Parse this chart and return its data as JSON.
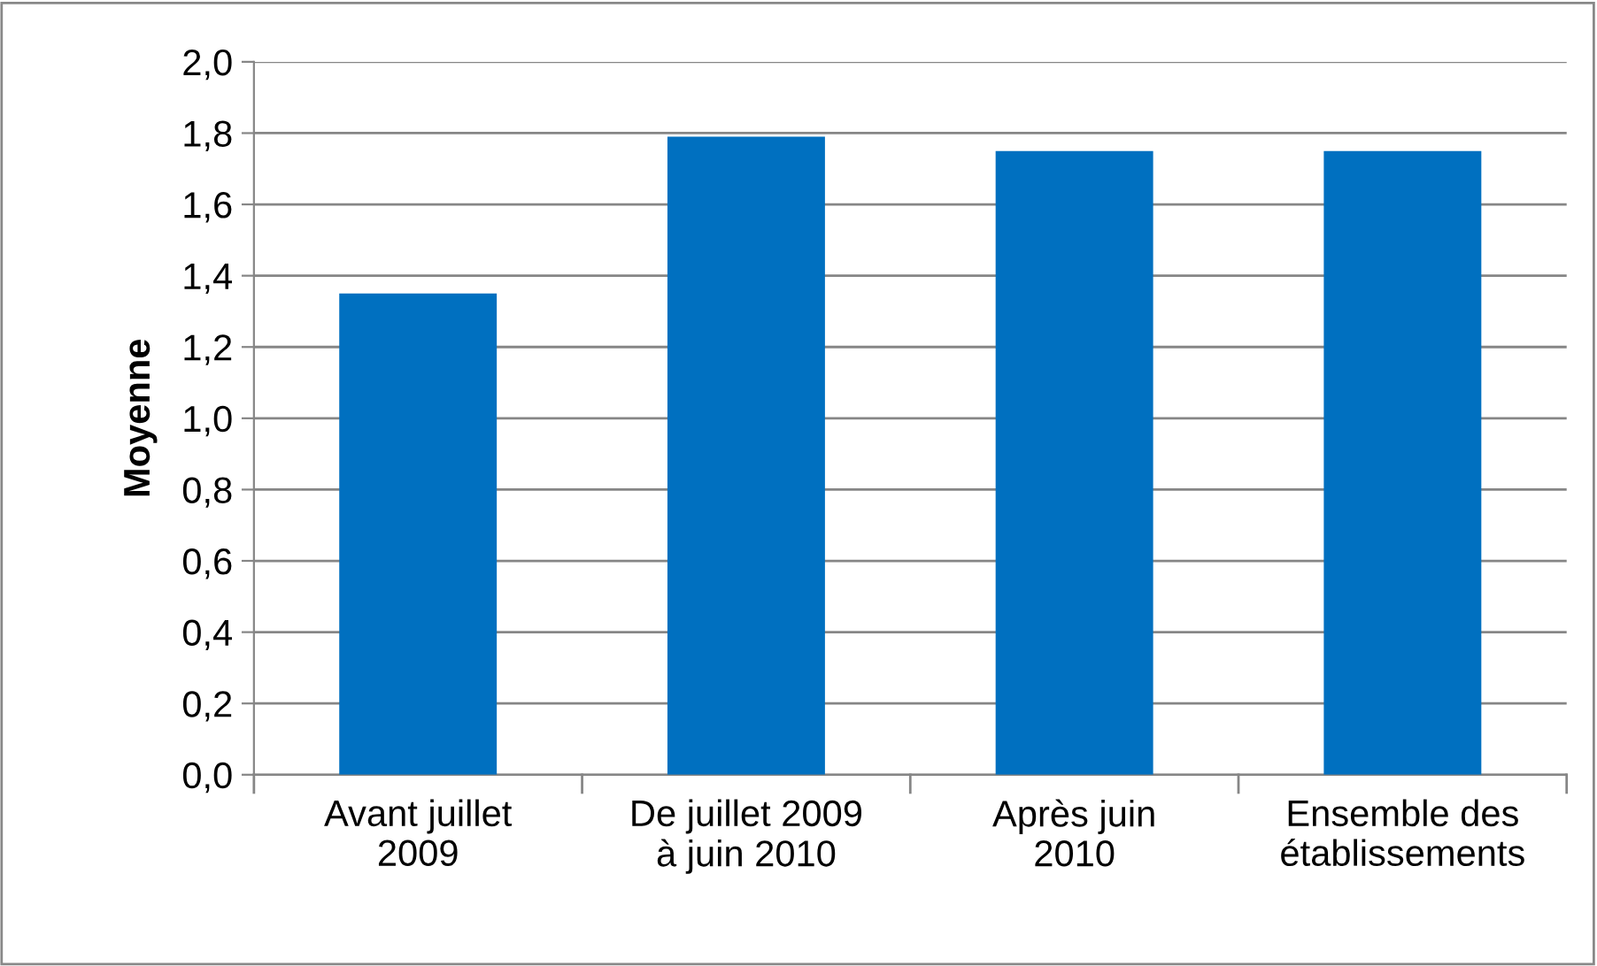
{
  "chart_data": {
    "type": "bar",
    "ylabel": "Moyenne",
    "categories": [
      "Avant juillet\n2009",
      "De juillet 2009\nà juin 2010",
      "Après juin\n2010",
      "Ensemble des\nétablissements"
    ],
    "values": [
      1.35,
      1.79,
      1.75,
      1.75
    ],
    "color": "#0070c0",
    "ylim": [
      0,
      2.0
    ],
    "yticks": [
      {
        "value": 0,
        "label": "0,0"
      },
      {
        "value": 0.2,
        "label": "0,2"
      },
      {
        "value": 0.4,
        "label": "0,4"
      },
      {
        "value": 0.6,
        "label": "0,6"
      },
      {
        "value": 0.8,
        "label": "0,8"
      },
      {
        "value": 1.0,
        "label": "1,0"
      },
      {
        "value": 1.2,
        "label": "1,2"
      },
      {
        "value": 1.4,
        "label": "1,4"
      },
      {
        "value": 1.6,
        "label": "1,6"
      },
      {
        "value": 1.8,
        "label": "1,8"
      },
      {
        "value": 2.0,
        "label": "2,0"
      }
    ],
    "grid": "y"
  }
}
